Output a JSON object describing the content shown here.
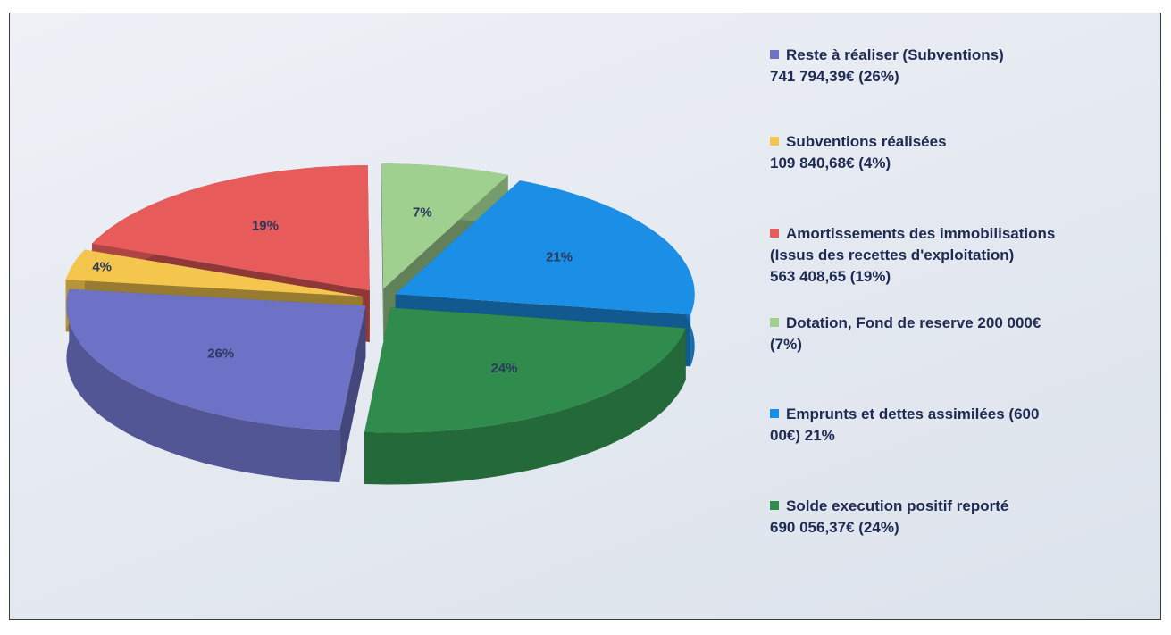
{
  "chart_data": {
    "type": "pie3d",
    "categories": [
      "Reste à réaliser (Subventions)\n741 794,39€ (26%)",
      "Subventions réalisées\n109 840,68€ (4%)",
      "Amortissements des immobilisations\n(Issus des recettes d'exploitation)\n563 408,65 (19%)",
      "Dotation, Fond de reserve 200 000€\n(7%)",
      "Emprunts et dettes assimilées (600\n00€) 21%",
      "Solde execution positif reporté\n690 056,37€ (24%)"
    ],
    "values": [
      26,
      4,
      19,
      7,
      21,
      24
    ],
    "value_labels": [
      "26%",
      "4%",
      "19%",
      "7%",
      "21%",
      "24%"
    ],
    "colors": [
      "#6e72c6",
      "#f4c64e",
      "#e85b5b",
      "#9fd08f",
      "#1b8fe6",
      "#2f8c4c"
    ]
  }
}
